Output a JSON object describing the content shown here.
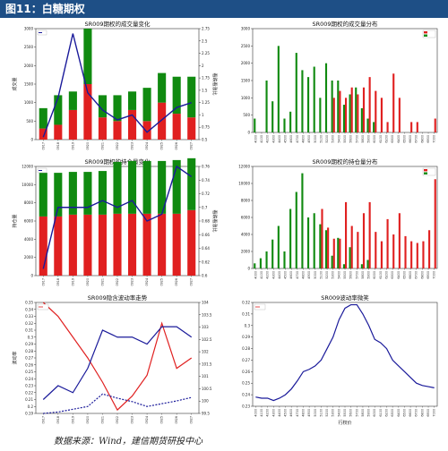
{
  "banner": {
    "title": "图11：白糖期权"
  },
  "footer": {
    "source": "数据来源：Wind，建信期货研投中心"
  },
  "colors": {
    "call": "#e02020",
    "put": "#108a10",
    "line": "#1a1a9a",
    "banner": "#1e4f86"
  },
  "chart_data": [
    {
      "type": "bar",
      "title": "SR009期权的成交量变化",
      "ylabel": "成交量",
      "y2label": "看跌看涨比",
      "categories": [
        "0917",
        "0918",
        "0919",
        "0920",
        "0921",
        "0922",
        "0923",
        "0924",
        "0925",
        "0926",
        "0927"
      ],
      "ylim": [
        0,
        3000
      ],
      "yticks": [
        0,
        500,
        1000,
        1500,
        2000,
        2500,
        3000
      ],
      "y2lim": [
        0.5,
        2.75
      ],
      "y2ticks": [
        0.5,
        0.75,
        1.0,
        1.25,
        1.5,
        1.75,
        2.0,
        2.25,
        2.5,
        2.75
      ],
      "series": [
        {
          "kind": "stack",
          "values": [
            300,
            400,
            800,
            1500,
            600,
            500,
            800,
            500,
            1000,
            700,
            600
          ]
        },
        {
          "kind": "stack",
          "values": [
            550,
            800,
            500,
            1500,
            600,
            700,
            500,
            900,
            800,
            1000,
            1100
          ]
        },
        {
          "kind": "line",
          "axis": "right",
          "values": [
            0.55,
            1.35,
            2.65,
            1.45,
            1.1,
            0.9,
            1.0,
            0.65,
            0.9,
            1.15,
            1.25
          ]
        }
      ]
    },
    {
      "type": "bar",
      "title": "SR009期权的成交量分布",
      "categories": [
        "4000",
        "4100",
        "4200",
        "4300",
        "4400",
        "4500",
        "4600",
        "4700",
        "4800",
        "4900",
        "5000",
        "5100",
        "5200",
        "5300",
        "5400",
        "5500",
        "5600",
        "5700",
        "5800",
        "5900",
        "6000",
        "6100",
        "6200",
        "6300",
        "6400",
        "6500",
        "6600",
        "6700",
        "6800",
        "6900",
        "7000"
      ],
      "ylim": [
        0,
        3000
      ],
      "yticks": [
        0,
        500,
        1000,
        1500,
        2000,
        2500,
        3000
      ],
      "series": [
        {
          "name": "put",
          "values": [
            400,
            0,
            1500,
            900,
            2500,
            400,
            600,
            2300,
            1800,
            1600,
            1900,
            1000,
            2000,
            1500,
            1500,
            800,
            1100,
            1300,
            700,
            400,
            300,
            0,
            0,
            0,
            0,
            0,
            0,
            0,
            0,
            0,
            0
          ]
        },
        {
          "name": "call",
          "values": [
            0,
            0,
            0,
            0,
            0,
            0,
            0,
            0,
            0,
            0,
            0,
            0,
            0,
            1000,
            1200,
            1000,
            1300,
            1100,
            1300,
            1600,
            1200,
            1000,
            300,
            1700,
            1000,
            0,
            300,
            300,
            0,
            0,
            400
          ]
        }
      ]
    },
    {
      "type": "bar",
      "title": "SR009期权的持仓量变化",
      "ylabel": "持仓量",
      "y2label": "看跌看涨比",
      "categories": [
        "0917",
        "0918",
        "0919",
        "0920",
        "0921",
        "0922",
        "0923",
        "0924",
        "0925",
        "0926",
        "0927"
      ],
      "ylim": [
        0,
        12000
      ],
      "yticks": [
        0,
        2000,
        4000,
        6000,
        8000,
        10000,
        12000
      ],
      "y2lim": [
        0.6,
        0.76
      ],
      "y2ticks": [
        0.6,
        0.62,
        0.64,
        0.66,
        0.68,
        0.7,
        0.72,
        0.74,
        0.76
      ],
      "series": [
        {
          "kind": "stack",
          "values": [
            6500,
            6500,
            6700,
            6700,
            6700,
            6800,
            6800,
            6800,
            6800,
            6800,
            7200
          ]
        },
        {
          "kind": "stack",
          "values": [
            4800,
            4800,
            4700,
            4700,
            4800,
            5700,
            5800,
            5800,
            5800,
            5900,
            5700
          ]
        },
        {
          "kind": "line",
          "axis": "right",
          "values": [
            0.61,
            0.7,
            0.7,
            0.7,
            0.71,
            0.7,
            0.71,
            0.68,
            0.69,
            0.76,
            0.745
          ]
        }
      ]
    },
    {
      "type": "bar",
      "title": "SR009期权的持仓量分布",
      "categories": [
        "4000",
        "4100",
        "4200",
        "4300",
        "4400",
        "4500",
        "4600",
        "4700",
        "4800",
        "4900",
        "5000",
        "5100",
        "5200",
        "5300",
        "5400",
        "5500",
        "5600",
        "5700",
        "5800",
        "5900",
        "6000",
        "6100",
        "6200",
        "6300",
        "6400",
        "6500",
        "6600",
        "6700",
        "6800",
        "6900",
        "7000"
      ],
      "ylim": [
        0,
        12000
      ],
      "yticks": [
        0,
        2000,
        4000,
        6000,
        8000,
        10000,
        12000
      ],
      "series": [
        {
          "name": "put",
          "values": [
            600,
            1200,
            2000,
            3400,
            5000,
            2000,
            7000,
            9000,
            11200,
            6000,
            6500,
            5200,
            4500,
            1500,
            3600,
            500,
            2500,
            0,
            500,
            1000,
            0,
            0,
            0,
            0,
            0,
            0,
            0,
            0,
            0,
            0,
            0
          ]
        },
        {
          "name": "call",
          "values": [
            0,
            0,
            0,
            0,
            0,
            0,
            0,
            0,
            0,
            0,
            0,
            7000,
            4800,
            3500,
            3500,
            7800,
            5000,
            4300,
            6500,
            7800,
            4300,
            3200,
            5800,
            4000,
            6500,
            3800,
            3200,
            3000,
            3200,
            4500,
            10500
          ]
        }
      ]
    },
    {
      "type": "line",
      "title": "SR009隐含波动率走势",
      "ylabel": "波动率",
      "categories": [
        "0917",
        "0918",
        "0919",
        "0920",
        "0921",
        "0922",
        "0923",
        "0924",
        "0925",
        "0926",
        "0927"
      ],
      "ylim": [
        0.19,
        0.35
      ],
      "yticks": [
        0.19,
        0.2,
        0.21,
        0.22,
        0.23,
        0.24,
        0.25,
        0.26,
        0.27,
        0.28,
        0.29,
        0.3,
        0.31,
        0.32,
        0.33,
        0.34,
        0.35
      ],
      "y2lim": [
        99.5,
        104
      ],
      "y2ticks": [
        99.5,
        100,
        100.5,
        101,
        101.5,
        102,
        102.5,
        103,
        103.5,
        104
      ],
      "series": [
        {
          "style": "solid",
          "color": "call",
          "values": [
            0.35,
            0.33,
            0.3,
            0.27,
            0.235,
            0.195,
            0.215,
            0.245,
            0.32,
            0.255,
            0.27
          ]
        },
        {
          "style": "solid",
          "color": "line",
          "values": [
            0.21,
            0.23,
            0.22,
            0.255,
            0.31,
            0.3,
            0.3,
            0.29,
            0.315,
            0.315,
            0.3
          ]
        },
        {
          "style": "dashed",
          "color": "line",
          "values": [
            0.19,
            0.192,
            0.196,
            0.2,
            0.218,
            0.212,
            0.207,
            0.2,
            0.204,
            0.208,
            0.213
          ]
        }
      ]
    },
    {
      "type": "line",
      "title": "SR009波动率微笑",
      "xlabel": "行权价",
      "categories": [
        "4000",
        "4100",
        "4200",
        "4300",
        "4400",
        "4500",
        "4600",
        "4700",
        "4800",
        "4900",
        "5000",
        "5100",
        "5200",
        "5300",
        "5400",
        "5500",
        "5600",
        "5700",
        "5800",
        "5900",
        "6000",
        "6100",
        "6200",
        "6300",
        "6400",
        "6500",
        "6600",
        "6700",
        "6800",
        "6900",
        "7000"
      ],
      "ylim": [
        0.23,
        0.32
      ],
      "yticks": [
        0.23,
        0.24,
        0.25,
        0.26,
        0.27,
        0.28,
        0.29,
        0.3,
        0.31,
        0.32
      ],
      "series": [
        {
          "style": "solid",
          "color": "line",
          "values": [
            0.238,
            0.237,
            0.237,
            0.235,
            0.237,
            0.24,
            0.245,
            0.252,
            0.26,
            0.262,
            0.265,
            0.27,
            0.28,
            0.29,
            0.305,
            0.315,
            0.318,
            0.318,
            0.31,
            0.3,
            0.288,
            0.285,
            0.28,
            0.27,
            0.265,
            0.26,
            0.255,
            0.25,
            0.248,
            0.247,
            0.246
          ]
        }
      ]
    }
  ]
}
